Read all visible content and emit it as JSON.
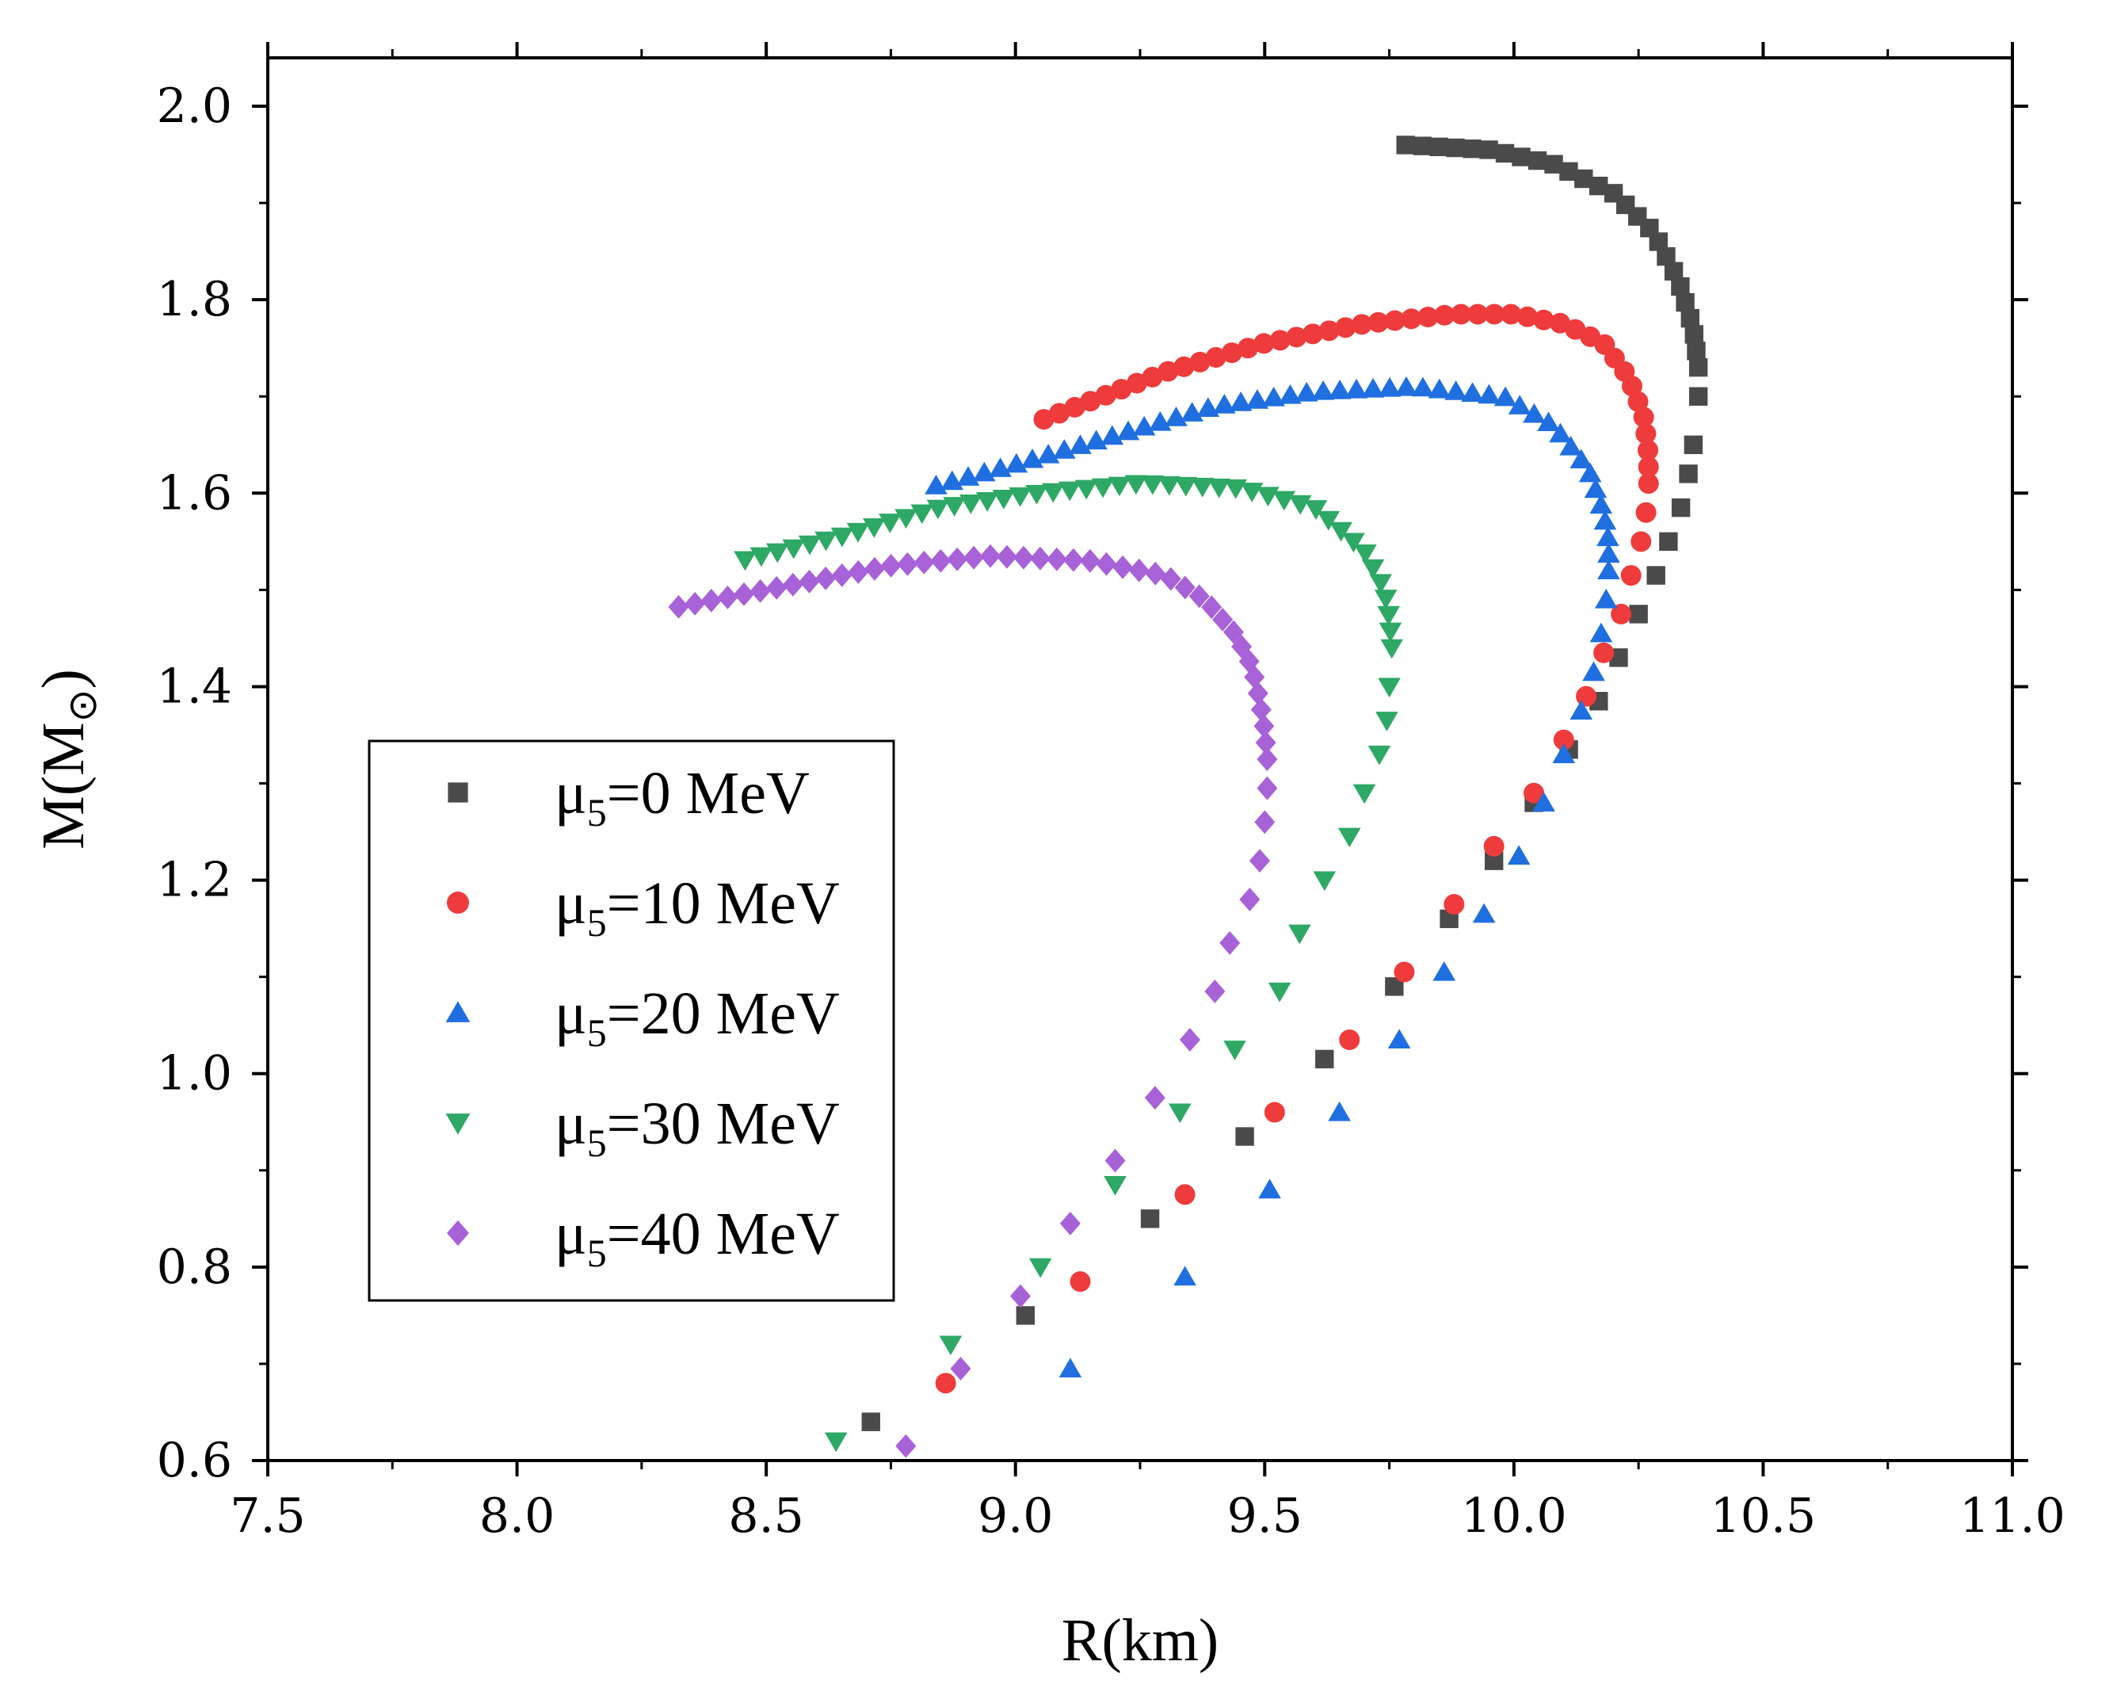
{
  "chart_data": {
    "type": "scatter",
    "xlabel": "R(km)",
    "ylabel_main": "M(M",
    "ylabel_sub": "⊙",
    "ylabel_end": ")",
    "xlim": [
      7.5,
      11.0
    ],
    "ylim": [
      0.6,
      2.05
    ],
    "x_ticks": [
      7.5,
      8.0,
      8.5,
      9.0,
      9.5,
      10.0,
      10.5,
      11.0
    ],
    "x_tick_labels": [
      "7.5",
      "8.0",
      "8.5",
      "9.0",
      "9.5",
      "10.0",
      "10.5",
      "11.0"
    ],
    "y_ticks": [
      0.6,
      0.8,
      1.0,
      1.2,
      1.4,
      1.6,
      1.8,
      2.0
    ],
    "y_tick_labels": [
      "0.6",
      "0.8",
      "1.0",
      "1.2",
      "1.4",
      "1.6",
      "1.8",
      "2.0"
    ],
    "legend_position": "left-middle",
    "series": [
      {
        "name": "μ5=0 MeV",
        "label_prefix": "μ",
        "label_sub": "5",
        "label_suffix": "=0 MeV",
        "color": "#4a4a4a",
        "marker": "square",
        "anchors": [
          [
            8.71,
            0.64
          ],
          [
            9.02,
            0.75
          ],
          [
            9.27,
            0.85
          ],
          [
            9.46,
            0.935
          ],
          [
            9.62,
            1.015
          ],
          [
            9.76,
            1.09
          ],
          [
            9.87,
            1.16
          ],
          [
            9.96,
            1.22
          ],
          [
            10.04,
            1.28
          ],
          [
            10.11,
            1.335
          ],
          [
            10.17,
            1.385
          ],
          [
            10.21,
            1.43
          ],
          [
            10.25,
            1.475
          ],
          [
            10.285,
            1.515
          ],
          [
            10.31,
            1.55
          ],
          [
            10.335,
            1.585
          ],
          [
            10.35,
            1.62
          ],
          [
            10.36,
            1.65
          ],
          [
            10.37,
            1.7
          ],
          [
            10.37,
            1.73
          ],
          [
            10.36,
            1.77
          ],
          [
            10.33,
            1.82
          ],
          [
            10.28,
            1.87
          ],
          [
            10.2,
            1.91
          ],
          [
            10.08,
            1.94
          ],
          [
            9.95,
            1.955
          ],
          [
            9.78,
            1.96
          ]
        ],
        "points": [
          [
            8.71,
            0.64
          ],
          [
            9.02,
            0.75
          ],
          [
            9.27,
            0.85
          ],
          [
            9.46,
            0.935
          ],
          [
            9.62,
            1.015
          ],
          [
            9.76,
            1.09
          ],
          [
            9.87,
            1.16
          ],
          [
            9.96,
            1.22
          ],
          [
            10.04,
            1.28
          ],
          [
            10.11,
            1.335
          ],
          [
            10.17,
            1.385
          ],
          [
            10.21,
            1.43
          ],
          [
            10.25,
            1.475
          ],
          [
            10.285,
            1.515
          ],
          [
            10.31,
            1.55
          ],
          [
            10.335,
            1.585
          ],
          [
            10.35,
            1.62
          ],
          [
            10.36,
            1.65
          ],
          [
            10.37,
            1.7
          ],
          [
            10.37,
            1.73
          ]
        ],
        "dense_tail": true
      },
      {
        "name": "μ5=10 MeV",
        "label_prefix": "μ",
        "label_sub": "5",
        "label_suffix": "=10 MeV",
        "color": "#ef3b3b",
        "marker": "circle",
        "anchors": [
          [
            8.86,
            0.68
          ],
          [
            9.13,
            0.785
          ],
          [
            9.34,
            0.875
          ],
          [
            9.52,
            0.96
          ],
          [
            9.67,
            1.035
          ],
          [
            9.78,
            1.105
          ],
          [
            9.88,
            1.175
          ],
          [
            9.96,
            1.235
          ],
          [
            10.04,
            1.29
          ],
          [
            10.1,
            1.345
          ],
          [
            10.145,
            1.39
          ],
          [
            10.18,
            1.435
          ],
          [
            10.215,
            1.475
          ],
          [
            10.235,
            1.515
          ],
          [
            10.255,
            1.55
          ],
          [
            10.265,
            1.58
          ],
          [
            10.27,
            1.61
          ],
          [
            10.27,
            1.64
          ],
          [
            10.26,
            1.68
          ],
          [
            10.23,
            1.72
          ],
          [
            10.18,
            1.755
          ],
          [
            10.1,
            1.775
          ],
          [
            10.0,
            1.785
          ],
          [
            9.88,
            1.785
          ],
          [
            9.7,
            1.775
          ],
          [
            9.5,
            1.755
          ],
          [
            9.3,
            1.725
          ],
          [
            9.15,
            1.695
          ],
          [
            9.05,
            1.675
          ]
        ],
        "points": [
          [
            8.86,
            0.68
          ],
          [
            9.13,
            0.785
          ],
          [
            9.34,
            0.875
          ],
          [
            9.52,
            0.96
          ],
          [
            9.67,
            1.035
          ],
          [
            9.78,
            1.105
          ],
          [
            9.88,
            1.175
          ],
          [
            9.96,
            1.235
          ],
          [
            10.04,
            1.29
          ],
          [
            10.1,
            1.345
          ],
          [
            10.145,
            1.39
          ],
          [
            10.18,
            1.435
          ],
          [
            10.215,
            1.475
          ],
          [
            10.235,
            1.515
          ],
          [
            10.255,
            1.55
          ],
          [
            10.265,
            1.58
          ],
          [
            10.27,
            1.61
          ]
        ],
        "dense_tail": true
      },
      {
        "name": "μ5=20 MeV",
        "label_prefix": "μ",
        "label_sub": "5",
        "label_suffix": "=20 MeV",
        "color": "#1f6fe0",
        "marker": "triangle-up",
        "anchors": [
          [
            9.11,
            0.695
          ],
          [
            9.34,
            0.79
          ],
          [
            9.51,
            0.88
          ],
          [
            9.65,
            0.96
          ],
          [
            9.77,
            1.035
          ],
          [
            9.86,
            1.105
          ],
          [
            9.94,
            1.165
          ],
          [
            10.01,
            1.225
          ],
          [
            10.06,
            1.28
          ],
          [
            10.1,
            1.33
          ],
          [
            10.135,
            1.375
          ],
          [
            10.16,
            1.415
          ],
          [
            10.175,
            1.455
          ],
          [
            10.185,
            1.49
          ],
          [
            10.19,
            1.52
          ],
          [
            10.19,
            1.55
          ],
          [
            10.18,
            1.58
          ],
          [
            10.15,
            1.625
          ],
          [
            10.08,
            1.67
          ],
          [
            9.98,
            1.7
          ],
          [
            9.8,
            1.71
          ],
          [
            9.6,
            1.705
          ],
          [
            9.4,
            1.69
          ],
          [
            9.2,
            1.66
          ],
          [
            9.0,
            1.63
          ],
          [
            8.82,
            1.605
          ]
        ],
        "points": [
          [
            9.11,
            0.695
          ],
          [
            9.34,
            0.79
          ],
          [
            9.51,
            0.88
          ],
          [
            9.65,
            0.96
          ],
          [
            9.77,
            1.035
          ],
          [
            9.86,
            1.105
          ],
          [
            9.94,
            1.165
          ],
          [
            10.01,
            1.225
          ],
          [
            10.06,
            1.28
          ],
          [
            10.1,
            1.33
          ],
          [
            10.135,
            1.375
          ],
          [
            10.16,
            1.415
          ],
          [
            10.175,
            1.455
          ],
          [
            10.185,
            1.49
          ],
          [
            10.19,
            1.52
          ]
        ],
        "dense_tail": true
      },
      {
        "name": "μ5=30 MeV",
        "label_prefix": "μ",
        "label_sub": "5",
        "label_suffix": "=30 MeV",
        "color": "#2ea865",
        "marker": "triangle-down",
        "anchors": [
          [
            8.64,
            0.62
          ],
          [
            8.87,
            0.72
          ],
          [
            9.05,
            0.8
          ],
          [
            9.2,
            0.885
          ],
          [
            9.33,
            0.96
          ],
          [
            9.44,
            1.025
          ],
          [
            9.53,
            1.085
          ],
          [
            9.57,
            1.145
          ],
          [
            9.62,
            1.2
          ],
          [
            9.67,
            1.245
          ],
          [
            9.7,
            1.29
          ],
          [
            9.73,
            1.33
          ],
          [
            9.745,
            1.365
          ],
          [
            9.75,
            1.4
          ],
          [
            9.755,
            1.44
          ],
          [
            9.75,
            1.47
          ],
          [
            9.74,
            1.5
          ],
          [
            9.7,
            1.54
          ],
          [
            9.6,
            1.585
          ],
          [
            9.45,
            1.605
          ],
          [
            9.25,
            1.61
          ],
          [
            9.05,
            1.6
          ],
          [
            8.85,
            1.585
          ],
          [
            8.65,
            1.555
          ],
          [
            8.45,
            1.53
          ]
        ],
        "points": [
          [
            8.64,
            0.62
          ],
          [
            8.87,
            0.72
          ],
          [
            9.05,
            0.8
          ],
          [
            9.2,
            0.885
          ],
          [
            9.33,
            0.96
          ],
          [
            9.44,
            1.025
          ],
          [
            9.53,
            1.085
          ],
          [
            9.57,
            1.145
          ],
          [
            9.62,
            1.2
          ],
          [
            9.67,
            1.245
          ],
          [
            9.7,
            1.29
          ],
          [
            9.73,
            1.33
          ],
          [
            9.745,
            1.365
          ],
          [
            9.75,
            1.4
          ],
          [
            9.755,
            1.44
          ]
        ],
        "dense_tail": true
      },
      {
        "name": "μ5=40 MeV",
        "label_prefix": "μ",
        "label_sub": "5",
        "label_suffix": "=40 MeV",
        "color": "#a862d8",
        "marker": "diamond",
        "anchors": [
          [
            8.78,
            0.615
          ],
          [
            8.89,
            0.695
          ],
          [
            9.01,
            0.77
          ],
          [
            9.11,
            0.845
          ],
          [
            9.2,
            0.91
          ],
          [
            9.28,
            0.975
          ],
          [
            9.35,
            1.035
          ],
          [
            9.4,
            1.085
          ],
          [
            9.43,
            1.135
          ],
          [
            9.47,
            1.18
          ],
          [
            9.49,
            1.22
          ],
          [
            9.5,
            1.26
          ],
          [
            9.505,
            1.295
          ],
          [
            9.505,
            1.325
          ],
          [
            9.5,
            1.355
          ],
          [
            9.49,
            1.385
          ],
          [
            9.475,
            1.42
          ],
          [
            9.44,
            1.455
          ],
          [
            9.38,
            1.49
          ],
          [
            9.3,
            1.515
          ],
          [
            9.15,
            1.53
          ],
          [
            8.95,
            1.535
          ],
          [
            8.75,
            1.525
          ],
          [
            8.55,
            1.505
          ],
          [
            8.3,
            1.48
          ]
        ],
        "points": [
          [
            8.78,
            0.615
          ],
          [
            8.89,
            0.695
          ],
          [
            9.01,
            0.77
          ],
          [
            9.11,
            0.845
          ],
          [
            9.2,
            0.91
          ],
          [
            9.28,
            0.975
          ],
          [
            9.35,
            1.035
          ],
          [
            9.4,
            1.085
          ],
          [
            9.43,
            1.135
          ],
          [
            9.47,
            1.18
          ],
          [
            9.49,
            1.22
          ],
          [
            9.5,
            1.26
          ],
          [
            9.505,
            1.295
          ],
          [
            9.505,
            1.325
          ]
        ],
        "dense_tail": true
      }
    ]
  }
}
